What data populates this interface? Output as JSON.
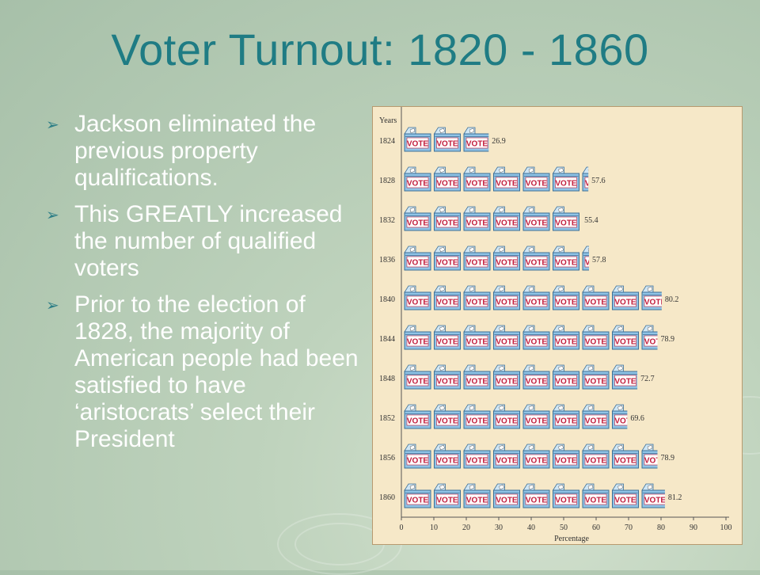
{
  "title": "Voter Turnout:  1820 - 1860",
  "bullets": [
    "Jackson eliminated the previous property qualifications.",
    "This GREATLY increased the number of qualified voters",
    "Prior to the election of 1828, the majority of American people had been satisfied to have ‘aristocrats’ select their President"
  ],
  "colors": {
    "title": "#1f7c84",
    "bullet_arrow": "#2c7e86",
    "chart_background": "#f6e8c8",
    "ballot_box": "#8fc3e6",
    "vote_label": "#c21d3c"
  },
  "icons": {
    "bullet": "arrowhead-bullet-icon",
    "mark": "ballot-box-icon"
  },
  "chart_data": {
    "type": "bar",
    "mark": "pictograph",
    "unit_label": "VOTE",
    "title": "",
    "ylabel": "Years",
    "xlabel": "Percentage",
    "categories": [
      "1824",
      "1828",
      "1832",
      "1836",
      "1840",
      "1844",
      "1848",
      "1852",
      "1856",
      "1860"
    ],
    "values": [
      26.9,
      57.6,
      55.4,
      57.8,
      80.2,
      78.9,
      72.7,
      69.6,
      78.9,
      81.2
    ],
    "value_labels": [
      "26.9",
      "57.6",
      "55.4",
      "57.8",
      "80.2",
      "78.9",
      "72.7",
      "69.6",
      "78.9",
      "81.2"
    ],
    "xlim": [
      0,
      100
    ],
    "xticks": [
      "0",
      "10",
      "20",
      "30",
      "40",
      "50",
      "60",
      "70",
      "80",
      "90",
      "100"
    ],
    "grid": false
  }
}
